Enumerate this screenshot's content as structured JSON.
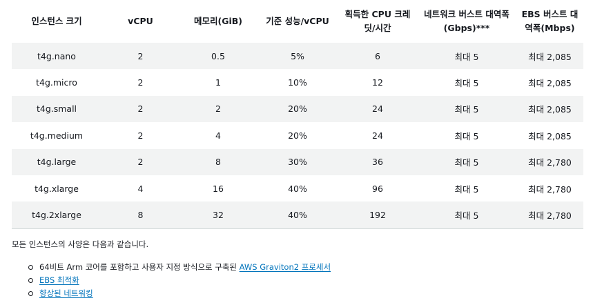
{
  "table": {
    "headers": [
      "인스턴스 크기",
      "vCPU",
      "메모리(GiB)",
      "기준 성능/vCPU",
      "획득한 CPU 크레딧/시간",
      "네트워크 버스트 대역폭(Gbps)***",
      "EBS 버스트 대역폭(Mbps)"
    ],
    "rows": [
      [
        "t4g.nano",
        "2",
        "0.5",
        "5%",
        "6",
        "최대 5",
        "최대 2,085"
      ],
      [
        "t4g.micro",
        "2",
        "1",
        "10%",
        "12",
        "최대 5",
        "최대 2,085"
      ],
      [
        "t4g.small",
        "2",
        "2",
        "20%",
        "24",
        "최대 5",
        "최대 2,085"
      ],
      [
        "t4g.medium",
        "2",
        "4",
        "20%",
        "24",
        "최대 5",
        "최대 2,085"
      ],
      [
        "t4g.large",
        "2",
        "8",
        "30%",
        "36",
        "최대 5",
        "최대 2,780"
      ],
      [
        "t4g.xlarge",
        "4",
        "16",
        "40%",
        "96",
        "최대 5",
        "최대 2,780"
      ],
      [
        "t4g.2xlarge",
        "8",
        "32",
        "40%",
        "192",
        "최대 5",
        "최대 2,780"
      ]
    ]
  },
  "summary": "모든 인스턴스의 사양은 다음과 같습니다.",
  "features": [
    {
      "prefix": "64비트 Arm 코어를 포함하고 사용자 지정 방식으로 구축된 ",
      "link": "AWS Graviton2 프로세서"
    },
    {
      "prefix": "",
      "link": "EBS 최적화"
    },
    {
      "prefix": "",
      "link": "향상된 네트워킹"
    }
  ]
}
